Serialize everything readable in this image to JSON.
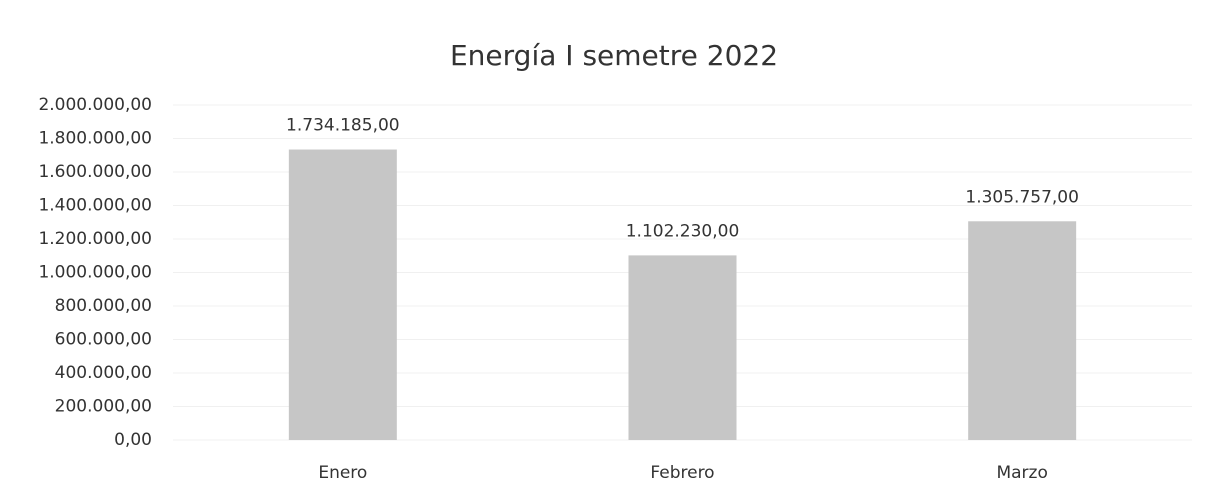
{
  "chart_data": {
    "type": "bar",
    "title": "Energía I semetre 2022",
    "categories": [
      "Enero",
      "Febrero",
      "Marzo"
    ],
    "values": [
      1734185,
      1102230,
      1305757
    ],
    "value_labels": [
      "1.734.185,00",
      "1.102.230,00",
      "1.305.757,00"
    ],
    "color": "#c6c6c6",
    "ylim": [
      0,
      2000000
    ],
    "yticks": [
      {
        "value": 0,
        "label": "0,00"
      },
      {
        "value": 200000,
        "label": "200.000,00"
      },
      {
        "value": 400000,
        "label": "400.000,00"
      },
      {
        "value": 600000,
        "label": "600.000,00"
      },
      {
        "value": 800000,
        "label": "800.000,00"
      },
      {
        "value": 1000000,
        "label": "1.000.000,00"
      },
      {
        "value": 1200000,
        "label": "1.200.000,00"
      },
      {
        "value": 1400000,
        "label": "1.400.000,00"
      },
      {
        "value": 1600000,
        "label": "1.600.000,00"
      },
      {
        "value": 1800000,
        "label": "1.800.000,00"
      },
      {
        "value": 2000000,
        "label": "2.000.000,00"
      }
    ],
    "grid": true
  }
}
